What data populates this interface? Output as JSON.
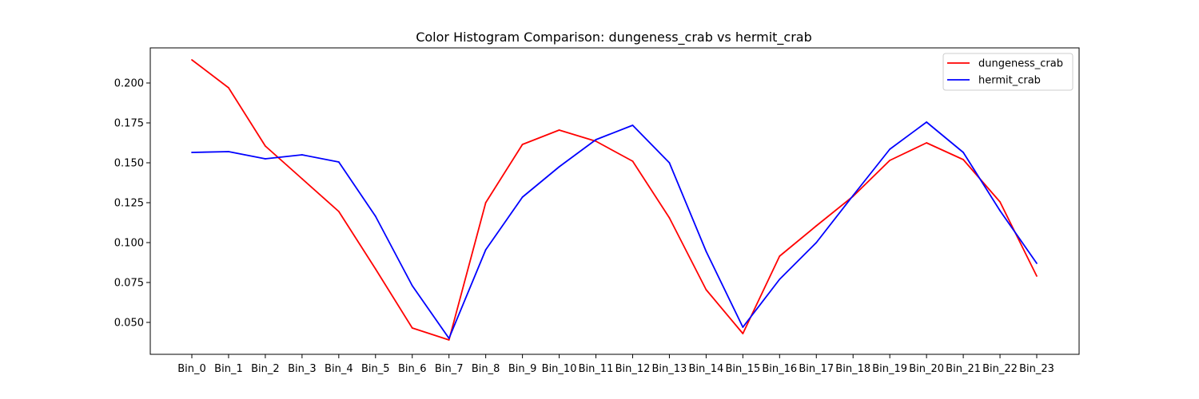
{
  "chart_data": {
    "type": "line",
    "title": "Color Histogram Comparison: dungeness_crab vs hermit_crab",
    "xlabel": "",
    "ylabel": "",
    "categories": [
      "Bin_0",
      "Bin_1",
      "Bin_2",
      "Bin_3",
      "Bin_4",
      "Bin_5",
      "Bin_6",
      "Bin_7",
      "Bin_8",
      "Bin_9",
      "Bin_10",
      "Bin_11",
      "Bin_12",
      "Bin_13",
      "Bin_14",
      "Bin_15",
      "Bin_16",
      "Bin_17",
      "Bin_18",
      "Bin_19",
      "Bin_20",
      "Bin_21",
      "Bin_22",
      "Bin_23"
    ],
    "ylim": [
      0.03,
      0.222
    ],
    "yticks": [
      0.05,
      0.075,
      0.1,
      0.125,
      0.15,
      0.175,
      0.2
    ],
    "ytick_labels": [
      "0.050",
      "0.075",
      "0.100",
      "0.125",
      "0.150",
      "0.175",
      "0.200"
    ],
    "grid": false,
    "legend_position": "top-right",
    "series": [
      {
        "name": "dungeness_crab",
        "color": "#ff0000",
        "values": [
          0.2145,
          0.197,
          0.1605,
          0.14,
          0.1195,
          0.0835,
          0.0465,
          0.039,
          0.125,
          0.1615,
          0.1705,
          0.1635,
          0.151,
          0.1155,
          0.0705,
          0.043,
          0.0915,
          0.1105,
          0.129,
          0.1515,
          0.1625,
          0.152,
          0.1255,
          0.079
        ]
      },
      {
        "name": "hermit_crab",
        "color": "#0000ff",
        "values": [
          0.1565,
          0.157,
          0.1525,
          0.155,
          0.1505,
          0.1165,
          0.073,
          0.04,
          0.0955,
          0.1285,
          0.1475,
          0.1645,
          0.1735,
          0.15,
          0.0945,
          0.047,
          0.077,
          0.1,
          0.1295,
          0.1585,
          0.1755,
          0.1565,
          0.12,
          0.087
        ]
      }
    ]
  }
}
